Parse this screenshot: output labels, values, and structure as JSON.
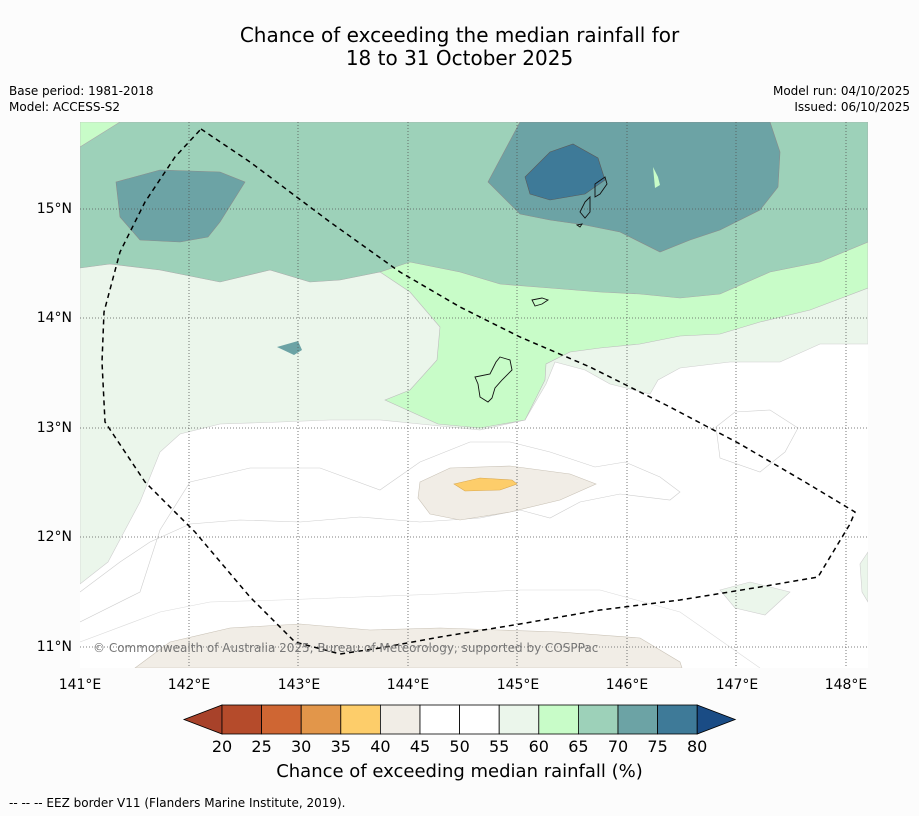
{
  "title": {
    "line1": "Chance of exceeding the median rainfall for",
    "line2": "18 to 31 October 2025"
  },
  "meta": {
    "base_period": "Base period: 1981-2018",
    "model": "Model: ACCESS-S2",
    "model_run": "Model run: 04/10/2025",
    "issued": "Issued: 06/10/2025"
  },
  "axes": {
    "x_labels": [
      "141°E",
      "142°E",
      "143°E",
      "144°E",
      "145°E",
      "146°E",
      "147°E",
      "148°E"
    ],
    "y_labels": [
      "15°N",
      "14°N",
      "13°N",
      "12°N",
      "11°N"
    ]
  },
  "copyright": "© Commonwealth of Australia 2025, Bureau of Meteorology, supported by COSPPac",
  "colorbar": {
    "ticks": [
      "20",
      "25",
      "30",
      "35",
      "40",
      "45",
      "50",
      "55",
      "60",
      "65",
      "70",
      "75",
      "80"
    ],
    "label": "Chance of exceeding median rainfall (%)",
    "colors": {
      "under": "#a8422a",
      "bins": [
        "#b54b2b",
        "#cf6633",
        "#e2964a",
        "#fdcd6a",
        "#f1ede6",
        "#ffffff",
        "#ffffff",
        "#ebf6eb",
        "#c8fcc8",
        "#9dd1b9",
        "#6ca3a5",
        "#3e7a98"
      ],
      "over": "#1a4c85"
    }
  },
  "legend": "--  --  -- EEZ border V11 (Flanders Marine Institute, 2019)."
}
